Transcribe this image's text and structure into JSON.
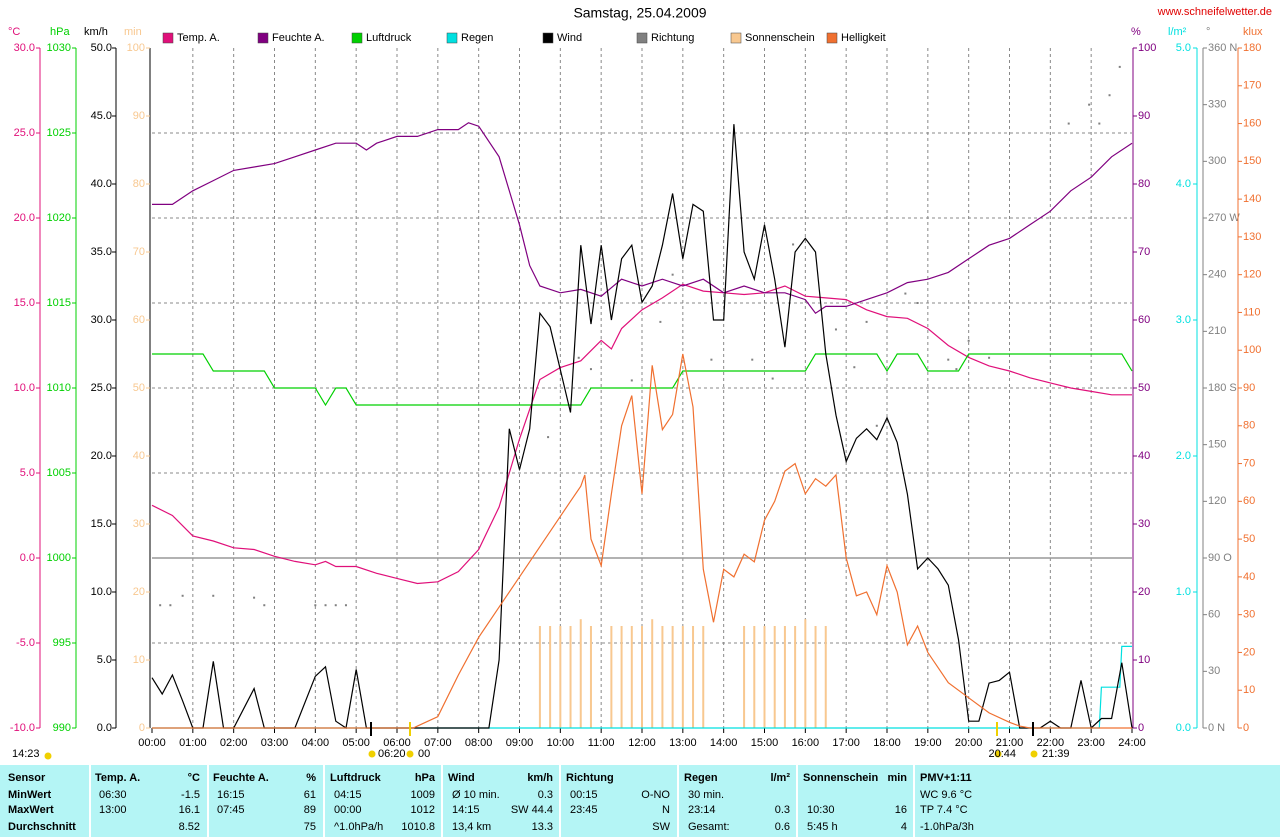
{
  "chart_data": {
    "type": "line",
    "title": "Samstag, 25.04.2009",
    "website": "www.schneifelwetter.de",
    "grid": true,
    "xlim": [
      0,
      24
    ],
    "xticks": [
      {
        "value": 0,
        "label": "00:00"
      },
      {
        "value": 1,
        "label": "01:00"
      },
      {
        "value": 2,
        "label": "02:00"
      },
      {
        "value": 3,
        "label": "03:00"
      },
      {
        "value": 4,
        "label": "04:00"
      },
      {
        "value": 5,
        "label": "05:00"
      },
      {
        "value": 6,
        "label": "06:00"
      },
      {
        "value": 7,
        "label": "07:00"
      },
      {
        "value": 8,
        "label": "08:00"
      },
      {
        "value": 9,
        "label": "09:00"
      },
      {
        "value": 10,
        "label": "10:00"
      },
      {
        "value": 11,
        "label": "11:00"
      },
      {
        "value": 12,
        "label": "12:00"
      },
      {
        "value": 13,
        "label": "13:00"
      },
      {
        "value": 14,
        "label": "14:00"
      },
      {
        "value": 15,
        "label": "15:00"
      },
      {
        "value": 16,
        "label": "16:00"
      },
      {
        "value": 17,
        "label": "17:00"
      },
      {
        "value": 18,
        "label": "18:00"
      },
      {
        "value": 19,
        "label": "19:00"
      },
      {
        "value": 20,
        "label": "20:00"
      },
      {
        "value": 21,
        "label": "21:00"
      },
      {
        "value": 22,
        "label": "22:00"
      },
      {
        "value": 23,
        "label": "23:00"
      },
      {
        "value": 24,
        "label": "24:00"
      }
    ],
    "ylabel": "°C",
    "ylim": [
      -10,
      30
    ],
    "yticks": [
      {
        "value": 30,
        "label": "30.0"
      },
      {
        "value": 25,
        "label": "25.0"
      },
      {
        "value": 20,
        "label": "20.0"
      },
      {
        "value": 15,
        "label": "15.0"
      },
      {
        "value": 10,
        "label": "10.0"
      },
      {
        "value": 5,
        "label": "5.0"
      },
      {
        "value": 0,
        "label": "0.0"
      },
      {
        "value": -5,
        "label": "-5.0"
      },
      {
        "value": -10,
        "label": "-10.0"
      }
    ],
    "y2label": "hPa",
    "y2lim": [
      990,
      1030
    ],
    "y2ticks": [
      1030,
      1025,
      1020,
      1015,
      1010,
      1005,
      1000,
      995,
      990
    ],
    "y3label": "km/h",
    "y3lim": [
      0,
      50
    ],
    "y3ticks": [
      {
        "value": 50,
        "label": "50.0"
      },
      {
        "value": 45,
        "label": "45.0"
      },
      {
        "value": 40,
        "label": "40.0"
      },
      {
        "value": 35,
        "label": "35.0"
      },
      {
        "value": 30,
        "label": "30.0"
      },
      {
        "value": 25,
        "label": "25.0"
      },
      {
        "value": 20,
        "label": "20.0"
      },
      {
        "value": 15,
        "label": "15.0"
      },
      {
        "value": 10,
        "label": "10.0"
      },
      {
        "value": 5,
        "label": "5.0"
      },
      {
        "value": 0,
        "label": "0.0"
      }
    ],
    "y4label": "min",
    "y4lim": [
      0,
      100
    ],
    "y4ticks": [
      100,
      90,
      80,
      70,
      60,
      50,
      40,
      30,
      20,
      10,
      0
    ],
    "y5label": "%",
    "y5lim": [
      0,
      100
    ],
    "y5ticks": [
      100,
      90,
      80,
      70,
      60,
      50,
      40,
      30,
      20,
      10,
      0
    ],
    "y6label": "l/m²",
    "y6lim": [
      0,
      5
    ],
    "y6ticks": [
      {
        "value": 5,
        "label": "5.0"
      },
      {
        "value": 4,
        "label": "4.0"
      },
      {
        "value": 3,
        "label": "3.0"
      },
      {
        "value": 2,
        "label": "2.0"
      },
      {
        "value": 1,
        "label": "1.0"
      },
      {
        "value": 0,
        "label": "0.0"
      }
    ],
    "y7label": "°",
    "y7lim": [
      0,
      360
    ],
    "y7ticks": [
      {
        "value": 360,
        "label": "360 N"
      },
      330,
      300,
      {
        "value": 270,
        "label": "270 W"
      },
      240,
      210,
      {
        "value": 180,
        "label": "180 S"
      },
      150,
      120,
      {
        "value": 90,
        "label": "90 O"
      },
      60,
      30,
      {
        "value": 0,
        "label": "0 N"
      }
    ],
    "y8label": "klux",
    "y8lim": [
      0,
      180
    ],
    "y8ticks": [
      180,
      170,
      160,
      150,
      140,
      130,
      120,
      110,
      100,
      90,
      80,
      70,
      60,
      50,
      40,
      30,
      20,
      10,
      0
    ],
    "series": [
      {
        "name": "Temp. A.",
        "color": "#e0107a",
        "axis": "y",
        "type": "line",
        "x": [
          0,
          0.5,
          1,
          1.5,
          2,
          2.5,
          3,
          3.5,
          4,
          4.25,
          4.5,
          5,
          5.5,
          6,
          6.5,
          7,
          7.5,
          8,
          8.5,
          9,
          9.5,
          10,
          10.5,
          11,
          11.25,
          11.5,
          12,
          12.5,
          13,
          13.5,
          14,
          14.5,
          15,
          15.5,
          16,
          16.5,
          17,
          17.5,
          18,
          18.5,
          19,
          19.5,
          20,
          20.5,
          21,
          21.5,
          22,
          22.5,
          23,
          23.5,
          24
        ],
        "values": [
          3.1,
          2.5,
          1.3,
          1.0,
          0.6,
          0.5,
          0.1,
          -0.2,
          -0.4,
          -0.2,
          -0.5,
          -0.5,
          -0.9,
          -1.2,
          -1.5,
          -1.4,
          -0.8,
          0.5,
          3.0,
          7.0,
          10.5,
          11.2,
          11.6,
          12.8,
          12.3,
          13.5,
          14.6,
          15.3,
          16.1,
          15.7,
          15.6,
          15.5,
          15.6,
          16.0,
          15.4,
          15.3,
          15.2,
          14.6,
          14.2,
          14.1,
          13.5,
          12.5,
          11.8,
          11.3,
          11.0,
          10.6,
          10.3,
          10.0,
          9.8,
          9.6,
          9.6
        ]
      },
      {
        "name": "Feuchte A.",
        "color": "#800080",
        "axis": "y5",
        "type": "line",
        "x": [
          0,
          0.5,
          1,
          1.5,
          2,
          2.5,
          3,
          3.5,
          4,
          4.5,
          5,
          5.25,
          5.5,
          6,
          6.5,
          7,
          7.5,
          7.75,
          8,
          8.5,
          9,
          9.25,
          9.5,
          10,
          10.5,
          11,
          11.5,
          12,
          12.5,
          13,
          13.5,
          14,
          14.5,
          15,
          15.5,
          16,
          16.25,
          16.5,
          17,
          17.5,
          18,
          18.5,
          19,
          19.5,
          20,
          20.5,
          21,
          21.5,
          22,
          22.5,
          23,
          23.5,
          24
        ],
        "values": [
          77,
          77,
          79,
          80.5,
          82,
          82.5,
          83,
          84,
          85,
          86,
          86,
          85,
          86,
          87,
          87,
          88,
          88,
          89,
          88.5,
          84,
          74,
          68,
          65,
          64,
          64.5,
          63.5,
          66,
          65,
          66,
          65,
          66,
          64,
          65,
          64,
          64,
          63,
          61,
          62,
          62,
          63,
          64,
          65.5,
          66,
          67,
          69,
          71,
          72,
          74,
          76,
          79,
          81,
          84,
          86
        ]
      },
      {
        "name": "Luftdruck",
        "color": "#00d000",
        "axis": "y2",
        "type": "line",
        "x": [
          0,
          1.25,
          1.5,
          2.75,
          3,
          4,
          4.25,
          4.5,
          4.75,
          5,
          10.5,
          10.75,
          12.75,
          13,
          16,
          16.25,
          17.75,
          18,
          18.25,
          18.75,
          19,
          19.75,
          20,
          23.75,
          24
        ],
        "values": [
          1012,
          1012,
          1011,
          1011,
          1010,
          1010,
          1009,
          1010,
          1010,
          1009,
          1009,
          1010,
          1010,
          1011,
          1011,
          1012,
          1012,
          1011,
          1012,
          1012,
          1011,
          1011,
          1012,
          1012,
          1011
        ]
      },
      {
        "name": "Regen",
        "color": "#00e0e0",
        "axis": "y6",
        "type": "line",
        "x": [
          0,
          23.2,
          23.25,
          23.7,
          23.75,
          24
        ],
        "values": [
          0,
          0,
          0.3,
          0.3,
          0.6,
          0.6
        ]
      },
      {
        "name": "Wind",
        "color": "#000000",
        "axis": "y3",
        "type": "line",
        "x": [
          0,
          0.25,
          0.5,
          0.75,
          1,
          1.25,
          1.5,
          1.75,
          2,
          2.5,
          2.75,
          3.5,
          4,
          4.25,
          4.5,
          4.75,
          5,
          5.25,
          8.25,
          8.5,
          8.75,
          9,
          9.25,
          9.5,
          9.75,
          10.25,
          10.5,
          10.75,
          11,
          11.25,
          11.5,
          11.75,
          12,
          12.25,
          12.5,
          12.75,
          13,
          13.25,
          13.5,
          13.75,
          14,
          14.25,
          14.5,
          14.75,
          15,
          15.25,
          15.5,
          15.75,
          16,
          16.25,
          16.5,
          16.75,
          17,
          17.25,
          17.5,
          17.75,
          18,
          18.25,
          18.5,
          18.75,
          19,
          19.25,
          19.5,
          19.75,
          20,
          20.25,
          20.5,
          20.75,
          21,
          21.25,
          21.75,
          22,
          22.25,
          22.5,
          22.75,
          23,
          23.25,
          23.5,
          23.75,
          24
        ],
        "values": [
          3.7,
          2.5,
          3.9,
          2,
          0,
          0,
          4.9,
          0,
          0,
          2.9,
          0,
          0,
          3.8,
          4.5,
          0.5,
          0,
          4.3,
          0,
          0,
          5,
          22,
          19,
          22,
          30.5,
          29.5,
          23.2,
          35.5,
          29.7,
          35.5,
          30,
          34.5,
          35.5,
          31.3,
          32.5,
          35.5,
          39.3,
          34.5,
          38.5,
          38,
          30,
          30,
          44.4,
          35,
          33,
          37,
          33,
          28,
          35,
          36,
          35,
          27.5,
          23,
          19.6,
          21.3,
          22,
          21.2,
          22.8,
          21,
          17.2,
          11.7,
          12.5,
          11.7,
          10.5,
          6.5,
          0.5,
          0.5,
          3.3,
          3.5,
          4.1,
          0,
          0,
          0.5,
          0,
          0,
          3.5,
          0,
          0.7,
          0.7,
          4.8,
          0
        ]
      },
      {
        "name": "Richtung",
        "color": "#808080",
        "axis": "y7",
        "type": "scatter",
        "x": [
          0.2,
          0.45,
          0.75,
          1.5,
          2.5,
          2.75,
          4.0,
          4.25,
          4.5,
          4.75,
          9.7,
          10.45,
          10.75,
          11.75,
          12.45,
          12.75,
          13.7,
          14.7,
          15.2,
          15.7,
          16.75,
          17.2,
          17.5,
          17.75,
          18.45,
          18.75,
          19.5,
          19.7,
          20,
          20.5,
          22.45,
          22.95,
          23.2,
          23.45,
          23.7
        ],
        "values": [
          65,
          65,
          70,
          70,
          69,
          65,
          65,
          65,
          65,
          65,
          154,
          196,
          190,
          184,
          215,
          240,
          195,
          195,
          185,
          256,
          211,
          191,
          215,
          160,
          230,
          225,
          195,
          190,
          205,
          196,
          320,
          330,
          320,
          335,
          350
        ]
      },
      {
        "name": "Sonnenschein",
        "color": "#f8c890",
        "axis": "y4",
        "type": "bar",
        "x": [
          9.5,
          9.75,
          10,
          10.25,
          10.5,
          10.75,
          11.25,
          11.5,
          11.75,
          12,
          12.25,
          12.5,
          12.75,
          13,
          13.25,
          13.5,
          14.5,
          14.75,
          15,
          15.25,
          15.5,
          15.75,
          16,
          16.25,
          16.5
        ],
        "values": [
          15,
          15,
          15,
          15,
          16,
          15,
          15,
          15,
          15,
          15,
          16,
          15,
          15,
          15,
          15,
          15,
          15,
          15,
          15,
          15,
          15,
          15,
          16,
          15,
          15
        ]
      },
      {
        "name": "Helligkeit",
        "color": "#f07030",
        "axis": "y8",
        "type": "line",
        "x": [
          0,
          6.4,
          6.5,
          7,
          7.5,
          8,
          8.5,
          9,
          9.5,
          10,
          10.25,
          10.5,
          10.6,
          10.75,
          11,
          11.25,
          11.5,
          11.75,
          12,
          12.25,
          12.5,
          12.75,
          13,
          13.25,
          13.5,
          13.75,
          14,
          14.25,
          14.5,
          14.75,
          15,
          15.25,
          15.5,
          15.75,
          16,
          16.25,
          16.5,
          16.75,
          17,
          17.25,
          17.5,
          17.75,
          18,
          18.25,
          18.5,
          18.75,
          19,
          19.5,
          20,
          20.5,
          21,
          21.25,
          21.5,
          24
        ],
        "values": [
          0,
          0,
          0.5,
          3,
          14,
          24,
          32,
          40,
          48,
          56,
          60,
          64,
          67,
          50,
          43,
          62,
          80,
          88,
          62,
          96,
          79,
          83,
          99,
          85,
          42,
          28,
          42,
          40,
          46,
          44,
          55,
          60,
          68,
          70,
          62,
          66,
          64,
          67,
          45,
          35,
          36,
          30,
          43,
          36,
          22,
          27,
          20,
          12,
          8,
          4,
          1.5,
          0.5,
          0,
          0
        ]
      }
    ],
    "time_labels": [
      "14:23",
      "06:20",
      "00",
      "20:44",
      "21:39"
    ]
  },
  "summary_table": {
    "columns": [
      {
        "title": "Sensor"
      },
      {
        "title": "Temp. A.",
        "unit": "°C"
      },
      {
        "title": "Feuchte A.",
        "unit": "%"
      },
      {
        "title": "Luftdruck",
        "unit": "hPa"
      },
      {
        "title": "Wind",
        "unit": "km/h"
      },
      {
        "title": "Richtung"
      },
      {
        "title": "Regen",
        "unit": "l/m²"
      },
      {
        "title": "Sonnenschein",
        "unit": "min"
      },
      {
        "title": "PMV+1:11"
      }
    ],
    "rows": [
      {
        "label": "MinWert",
        "cells": [
          [
            "06:30",
            "-1.5"
          ],
          [
            "16:15",
            "61"
          ],
          [
            "04:15",
            "1009"
          ],
          [
            "Ø 10 min.",
            "0.3"
          ],
          [
            "00:15",
            "O-NO"
          ],
          [
            "30 min.",
            null
          ],
          [
            null,
            null
          ],
          [
            "WC 9.6 °C"
          ]
        ]
      },
      {
        "label": "MaxWert",
        "cells": [
          [
            "13:00",
            "16.1"
          ],
          [
            "07:45",
            "89"
          ],
          [
            "00:00",
            "1012"
          ],
          [
            "14:15",
            "SW 44.4"
          ],
          [
            "23:45",
            "N"
          ],
          [
            "23:14",
            "0.3"
          ],
          [
            "10:30",
            "16"
          ],
          [
            "TP 7.4 °C"
          ]
        ]
      },
      {
        "label": "Durchschnitt",
        "cells": [
          [
            null,
            "8.52"
          ],
          [
            null,
            "75"
          ],
          [
            "^1.0hPa/h",
            "1010.8"
          ],
          [
            "13,4 km",
            "13.3"
          ],
          [
            null,
            "SW"
          ],
          [
            "Gesamt:",
            "0.6"
          ],
          [
            "5:45 h",
            "4"
          ],
          [
            "-1.0hPa/3h"
          ]
        ]
      }
    ]
  }
}
